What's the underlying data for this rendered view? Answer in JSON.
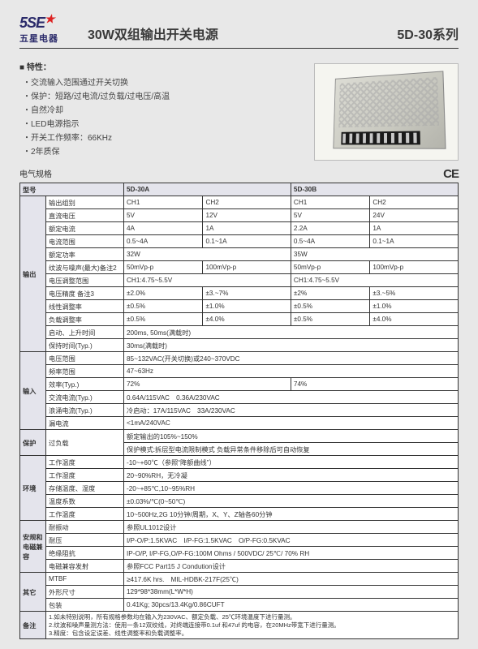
{
  "logo": {
    "brand": "5SE",
    "cn": "五星电器"
  },
  "title": "30W双组输出开关电源",
  "series": "5D-30系列",
  "features": {
    "heading": "■ 特性：",
    "items": [
      "交流输入范围通过开关切换",
      "保护：短路/过电流/过负载/过电压/高温",
      "自然冷却",
      "LED电源指示",
      "开关工作频率：66KHz",
      "2年质保"
    ]
  },
  "specLabel": "电气规格",
  "ce": "CE",
  "th": {
    "model": "型号",
    "m30a": "5D-30A",
    "m30b": "5D-30B"
  },
  "groups": {
    "out": "输出",
    "in": "输入",
    "prot": "保护",
    "env": "环境",
    "safe": "安规和电磁兼容",
    "other": "其它",
    "note": "备注"
  },
  "r": {
    "outgrp": {
      "l": "输出组别",
      "a1": "CH1",
      "a2": "CH2",
      "b1": "CH1",
      "b2": "CH2"
    },
    "dcv": {
      "l": "直流电压",
      "a1": "5V",
      "a2": "12V",
      "b1": "5V",
      "b2": "24V"
    },
    "cur": {
      "l": "额定电流",
      "a1": "4A",
      "a2": "1A",
      "b1": "2.2A",
      "b2": "1A"
    },
    "crng": {
      "l": "电流范围",
      "a1": "0.5~4A",
      "a2": "0.1~1A",
      "b1": "0.5~4A",
      "b2": "0.1~1A"
    },
    "pwr": {
      "l": "额定功率",
      "a": "32W",
      "b": "35W"
    },
    "rpl": {
      "l": "纹波与噪声(最大)备注2",
      "a1": "50mVp-p",
      "a2": "100mVp-p",
      "b1": "50mVp-p",
      "b2": "100mVp-p"
    },
    "vadj": {
      "l": "电压调整范围",
      "a": "CH1:4.75~5.5V",
      "b": "CH1:4.75~5.5V"
    },
    "vacc": {
      "l": "电压精度 备注3",
      "a1": "±2.0%",
      "a2": "±3.~7%",
      "b1": "±2%",
      "b2": "±3.~5%"
    },
    "line": {
      "l": "线性调整率",
      "a1": "±0.5%",
      "a2": "±1.0%",
      "b1": "±0.5%",
      "b2": "±1.0%"
    },
    "load": {
      "l": "负载调整率",
      "a1": "±0.5%",
      "a2": "±4.0%",
      "b1": "±0.5%",
      "b2": "±4.0%"
    },
    "rise": {
      "l": "启动、上升时间",
      "v": "200ms, 50ms(满载时)"
    },
    "hold": {
      "l": "保持时间(Typ.)",
      "v": "30ms(满载时)"
    },
    "vin": {
      "l": "电压范围",
      "v": "85~132VAC(开关切换)或240~370VDC"
    },
    "fin": {
      "l": "频率范围",
      "v": "47~63Hz"
    },
    "eff": {
      "l": "效率(Typ.)",
      "a": "72%",
      "b": "74%"
    },
    "acc": {
      "l": "交流电流(Typ.)",
      "v": "0.64A/115VAC　0.36A/230VAC"
    },
    "inr": {
      "l": "浪涌电流(Typ.)",
      "v": "冷启动：17A/115VAC　33A/230VAC"
    },
    "leak": {
      "l": "漏电流",
      "v": "<1mA/240VAC"
    },
    "ol": {
      "l": "过负载",
      "v1": "额定输出的105%~150%",
      "v2": "保护模式:拆层型电流限制模式 负载异常条件移除后可自动恢复"
    },
    "topr": {
      "l": "工作温度",
      "v": "-10~+60℃（参照“降额曲线”）"
    },
    "hopr": {
      "l": "工作湿度",
      "v": "20~90%RH，无冷凝"
    },
    "tstr": {
      "l": "存储温度、湿度",
      "v": "-20~+85℃,10~95%RH"
    },
    "tco": {
      "l": "温度系数",
      "v": "±0.03%/℃(0~50℃)"
    },
    "vib": {
      "l": "工作温度",
      "v2": "10~500Hz,2G 10分钟/周期，X、Y、Z轴各60分钟"
    },
    "shk": {
      "l": "耐振动",
      "v": "参照UL1012设计"
    },
    "wst": {
      "l": "耐压",
      "v": "I/P-O/P:1.5KVAC　I/P-FG:1.5KVAC　O/P-FG:0.5KVAC"
    },
    "ins": {
      "l": "绝缘阻抗",
      "v": "IP-O/P, I/P-FG,O/P-FG:100M Ohms / 500VDC/ 25℃/ 70% RH"
    },
    "emc": {
      "l": "电磁兼容发射",
      "v": "参照FCC Part15 J Condution设计"
    },
    "mtbf": {
      "l": "MTBF",
      "v": "≥417.6K hrs.　MIL-HDBK-217F(25℃)"
    },
    "dim": {
      "l": "外形尺寸",
      "v": "129*98*38mm(L*W*H)"
    },
    "pkg": {
      "l": "包装",
      "v": "0.41Kg; 30pcs/13.4Kg/0.86CUFT"
    }
  },
  "notes": "1.如未特别说明，所有规格参数均在输入为230VAC、额定负载、25℃环境温度下进行量测。\n2.纹波和噪声量测方法：使用一条12双绞线，对终端连接带0.1uf 和47uf 的电容，在20MHz带宽下进行量测。\n3.精度：包含设定误差、线性调整率和负载调整率。"
}
